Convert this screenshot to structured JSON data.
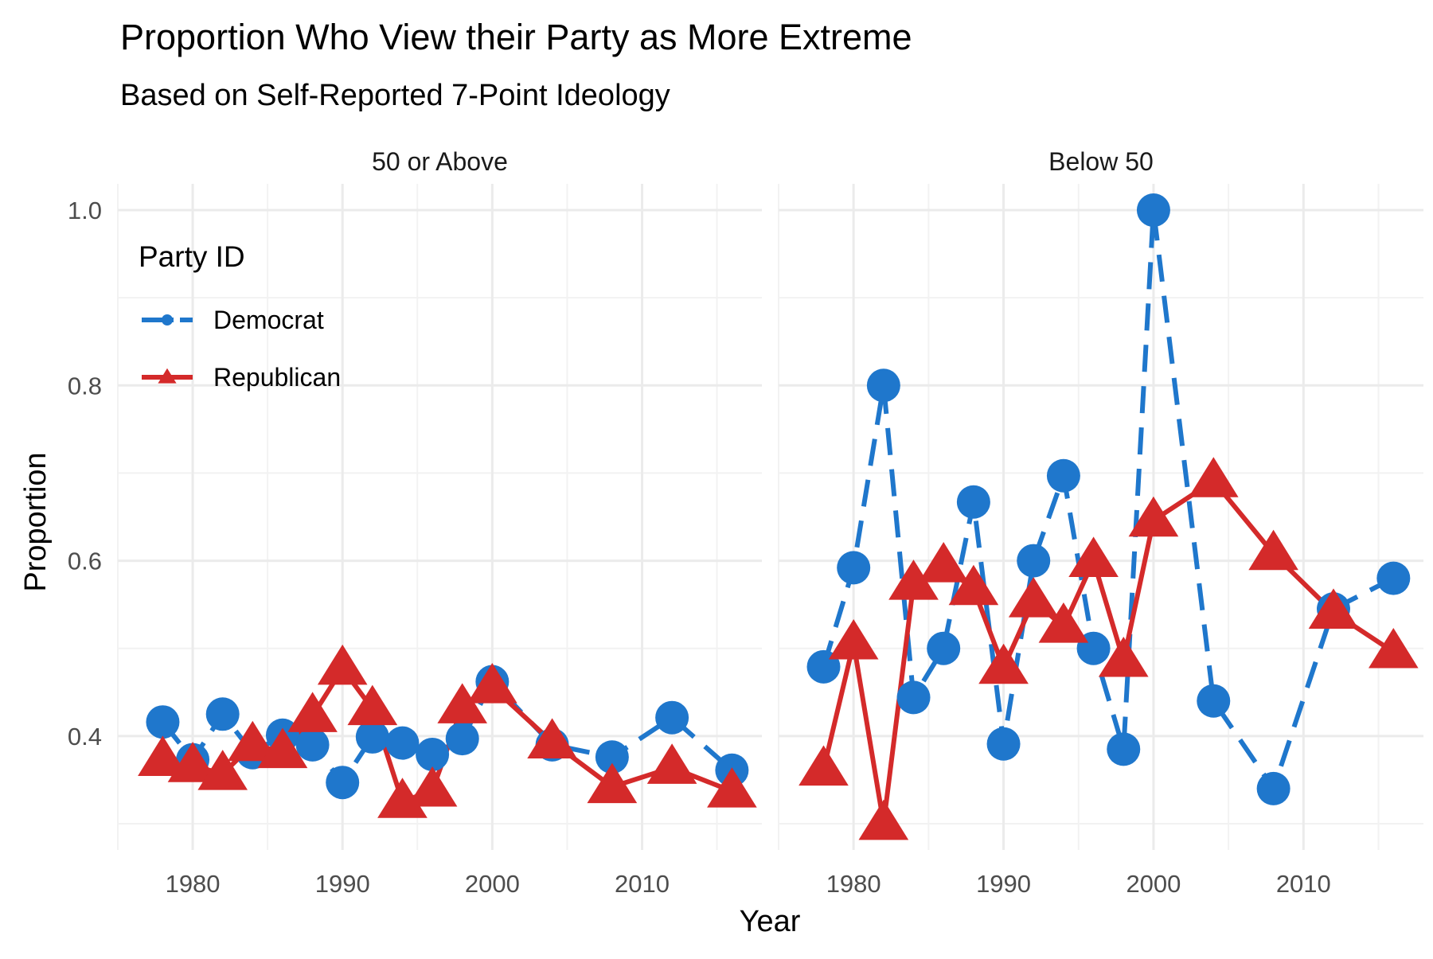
{
  "chart_data": {
    "type": "line",
    "title": "Proportion Who View their Party as More Extreme",
    "subtitle": "Based on Self-Reported 7-Point Ideology",
    "xlabel": "Year",
    "ylabel": "Proportion",
    "xlim": [
      1975,
      2018
    ],
    "ylim": [
      0.27,
      1.03
    ],
    "x_ticks": [
      1980,
      1990,
      2000,
      2010
    ],
    "y_ticks": [
      0.4,
      0.6,
      0.8,
      1.0
    ],
    "y_tick_labels": [
      "0.4",
      "0.6",
      "0.8",
      "1.0"
    ],
    "grid": true,
    "legend": {
      "title": "Party ID",
      "placement": "top-left (inside first panel)",
      "entries": [
        {
          "name": "Democrat",
          "color": "#1f77cc",
          "marker": "circle",
          "line": "dashed"
        },
        {
          "name": "Republican",
          "color": "#d42a2a",
          "marker": "triangle",
          "line": "solid"
        }
      ]
    },
    "panels": [
      {
        "label": "50 or Above",
        "series": [
          {
            "name": "Democrat",
            "x": [
              1978,
              1980,
              1982,
              1984,
              1986,
              1988,
              1990,
              1992,
              1994,
              1996,
              1998,
              2000,
              2004,
              2008,
              2012,
              2016
            ],
            "values": [
              0.416,
              0.373,
              0.425,
              0.381,
              0.401,
              0.39,
              0.347,
              0.399,
              0.392,
              0.379,
              0.397,
              0.462,
              0.39,
              0.376,
              0.421,
              0.361
            ]
          },
          {
            "name": "Republican",
            "x": [
              1978,
              1980,
              1982,
              1984,
              1986,
              1988,
              1990,
              1992,
              1994,
              1996,
              1998,
              2000,
              2004,
              2008,
              2012,
              2016
            ],
            "values": [
              0.373,
              0.366,
              0.357,
              0.39,
              0.382,
              0.423,
              0.477,
              0.431,
              0.325,
              0.338,
              0.433,
              0.456,
              0.393,
              0.342,
              0.364,
              0.337
            ]
          }
        ]
      },
      {
        "label": "Below 50",
        "series": [
          {
            "name": "Democrat",
            "x": [
              1978,
              1980,
              1982,
              1984,
              1986,
              1988,
              1990,
              1992,
              1994,
              1996,
              1998,
              2000,
              2004,
              2008,
              2012,
              2016
            ],
            "values": [
              0.479,
              0.592,
              0.8,
              0.444,
              0.5,
              0.667,
              0.391,
              0.6,
              0.697,
              0.5,
              0.385,
              1.0,
              0.44,
              0.34,
              0.545,
              0.58
            ]
          },
          {
            "name": "Republican",
            "x": [
              1978,
              1980,
              1982,
              1984,
              1986,
              1988,
              1990,
              1992,
              1994,
              1996,
              1998,
              2000,
              2004,
              2008,
              2012,
              2016
            ],
            "values": [
              0.362,
              0.506,
              0.3,
              0.574,
              0.594,
              0.568,
              0.478,
              0.554,
              0.525,
              0.6,
              0.486,
              0.646,
              0.691,
              0.608,
              0.541,
              0.496
            ]
          }
        ]
      }
    ]
  }
}
